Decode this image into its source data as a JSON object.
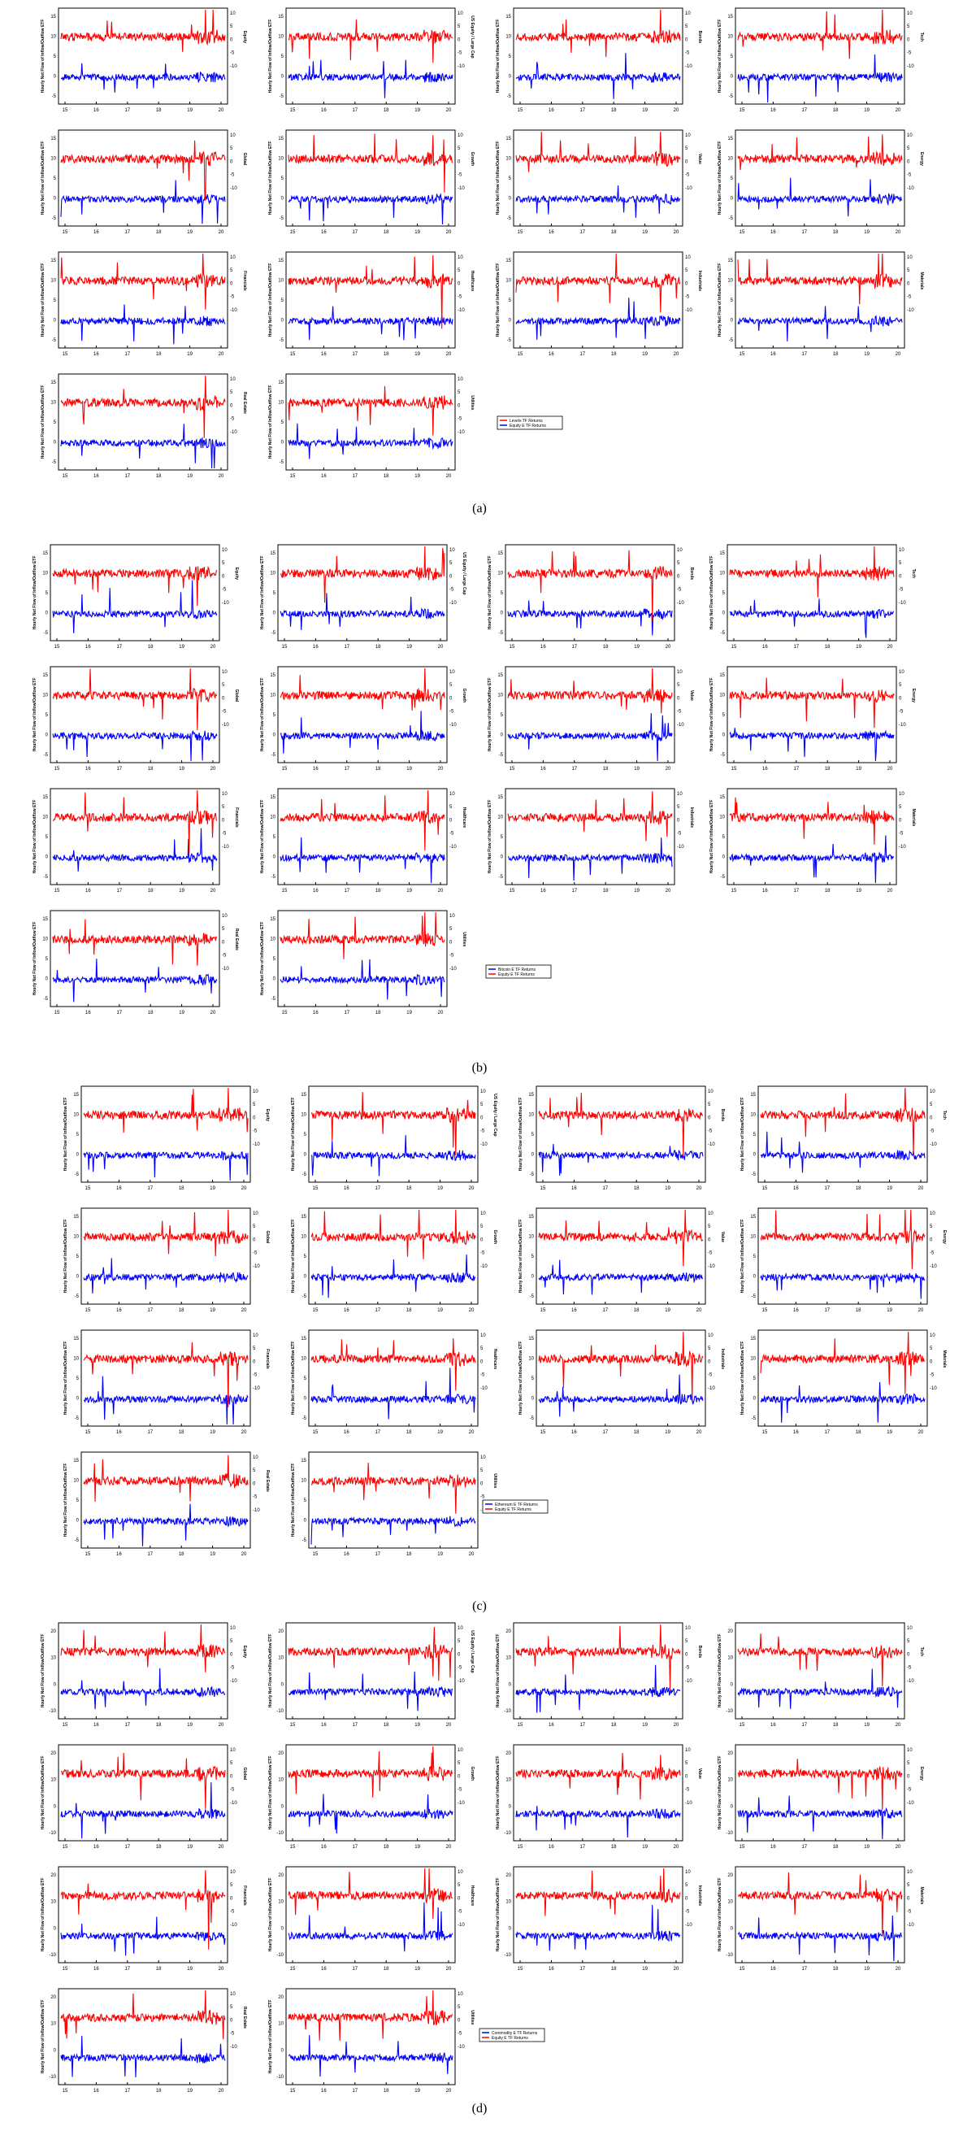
{
  "figure": {
    "panels": [
      {
        "label": "(a)",
        "legend": [
          "Levels TF Returns",
          "Equity E TF Returns"
        ],
        "chart_data": {
          "type": "line",
          "series_names": [
            "Red return series (top, right axis)",
            "Blue return series (bottom, left axis)"
          ],
          "x_ticks": [
            "15",
            "16",
            "17",
            "18",
            "19",
            "20"
          ],
          "left_axis_ticks": [
            "15",
            "10",
            "5",
            "0",
            "-5"
          ],
          "right_axis_ticks": [
            "10",
            "5",
            "0",
            "-5",
            "-10"
          ],
          "left_ylabel": "Hourly Net Flow of Inflow/Outflow ETF",
          "right_ylabels": [
            "Equity",
            "US Equity / Large Cap",
            "Bonds",
            "Tech",
            "Global",
            "Growth",
            "Value",
            "Energy",
            "Financials",
            "Healthcare",
            "Industrials",
            "Materials",
            "Real Estate",
            "Utilities"
          ]
        }
      },
      {
        "label": "(b)",
        "legend": [
          "Bitcoin E TF Returns",
          "Equity E TF Returns"
        ],
        "chart_data": {
          "type": "line",
          "series_names": [
            "Red return series (top, right axis)",
            "Blue return series (bottom, left axis)"
          ],
          "x_ticks": [
            "15",
            "16",
            "17",
            "18",
            "19",
            "20"
          ],
          "left_axis_ticks": [
            "15",
            "10",
            "5",
            "0",
            "-5"
          ],
          "right_axis_ticks": [
            "10",
            "5",
            "0",
            "-5",
            "-10"
          ],
          "left_ylabel": "Hourly Net Flow of Inflow/Outflow ETF",
          "right_ylabels": [
            "Equity",
            "US Equity / Large Cap",
            "Bonds",
            "Tech",
            "Global",
            "Growth",
            "Value",
            "Energy",
            "Financials",
            "Healthcare",
            "Industrials",
            "Materials",
            "Real Estate",
            "Utilities"
          ]
        }
      },
      {
        "label": "(c)",
        "legend": [
          "Ethereum E TF Returns",
          "Equity E TF Returns"
        ],
        "chart_data": {
          "type": "line",
          "series_names": [
            "Red return series (top, right axis)",
            "Blue return series (bottom, left axis)"
          ],
          "x_ticks": [
            "15",
            "16",
            "17",
            "18",
            "19",
            "20"
          ],
          "left_axis_ticks": [
            "15",
            "10",
            "5",
            "0",
            "-5"
          ],
          "right_axis_ticks": [
            "10",
            "5",
            "0",
            "-5",
            "-10"
          ],
          "left_ylabel": "Hourly Net Flow of Inflow/Outflow ETF",
          "right_ylabels": [
            "Equity",
            "US Equity / Large Cap",
            "Bonds",
            "Tech",
            "Global",
            "Growth",
            "Value",
            "Energy",
            "Financials",
            "Healthcare",
            "Industrials",
            "Materials",
            "Real Estate",
            "Utilities"
          ]
        }
      },
      {
        "label": "(d)",
        "legend": [
          "Commodity E TF Returns",
          "Equity E TF Returns"
        ],
        "chart_data": {
          "type": "line",
          "series_names": [
            "Red return series (top, right axis)",
            "Blue return series (bottom, left axis)"
          ],
          "x_ticks": [
            "15",
            "16",
            "17",
            "18",
            "19",
            "20"
          ],
          "left_axis_ticks": [
            "20",
            "10",
            "0",
            "-10"
          ],
          "right_axis_ticks": [
            "10",
            "5",
            "0",
            "-5",
            "-10"
          ],
          "left_ylabel": "Hourly Net Flow of Inflow/Outflow ETF",
          "right_ylabels": [
            "Equity",
            "US Equity / Large Cap",
            "Bonds",
            "Tech",
            "Global",
            "Growth",
            "Value",
            "Energy",
            "Financials",
            "Healthcare",
            "Industrials",
            "Materials",
            "Real Estate",
            "Utilities"
          ]
        }
      }
    ],
    "colors": {
      "top_series": "#ff0000",
      "bottom_series": "#0000ff",
      "axis": "#000000"
    }
  }
}
